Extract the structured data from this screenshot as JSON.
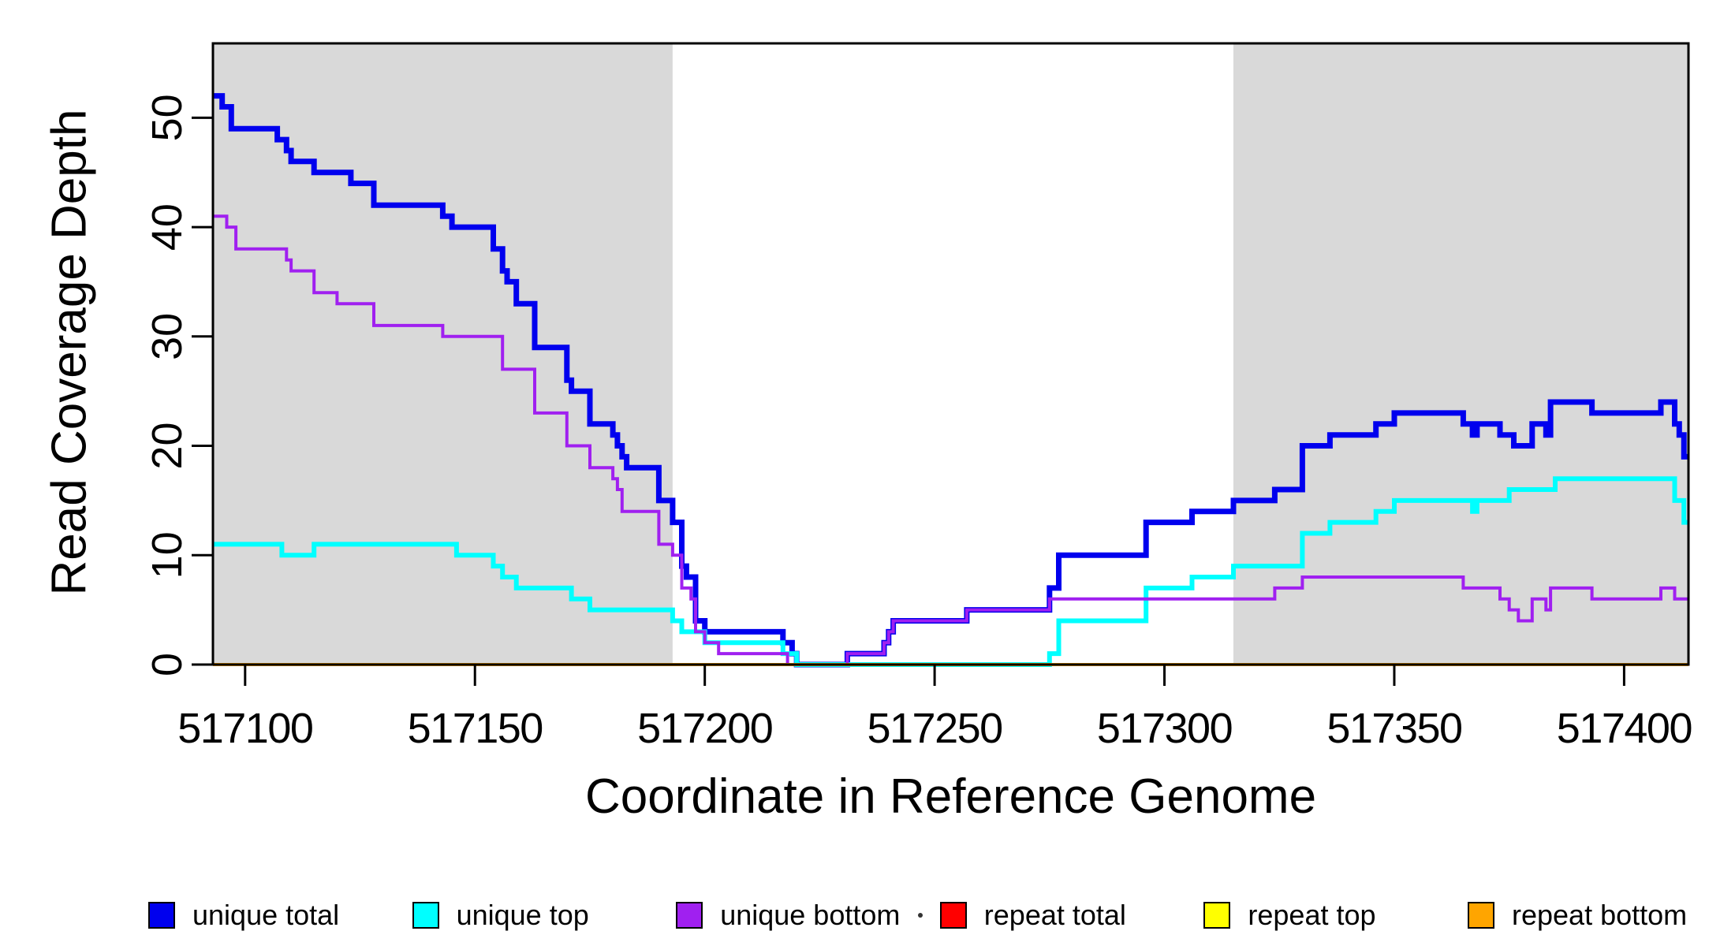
{
  "figure": {
    "x_title": "Coordinate in Reference Genome",
    "y_title": "Read Coverage Depth"
  },
  "legend": {
    "items": [
      {
        "label": "unique total",
        "color": "#0000EE"
      },
      {
        "label": "unique top",
        "color": "#00FFFF"
      },
      {
        "label": "unique bottom",
        "color": "#A020F0"
      },
      {
        "label": "repeat total",
        "color": "#FF0000"
      },
      {
        "label": "repeat top",
        "color": "#FFFF00"
      },
      {
        "label": "repeat bottom",
        "color": "#FFA500"
      }
    ]
  },
  "chart_data": {
    "type": "line",
    "step_style": "after",
    "title": "",
    "xlabel": "Coordinate in Reference Genome",
    "ylabel": "Read Coverage Depth",
    "xlim": [
      517093,
      517414
    ],
    "ylim": [
      0,
      56.8
    ],
    "x_ticks": [
      517100,
      517150,
      517200,
      517250,
      517300,
      517350,
      517400
    ],
    "y_ticks": [
      0,
      10,
      20,
      30,
      40,
      50
    ],
    "grid": false,
    "legend_position": "bottom",
    "shaded_regions": [
      {
        "x0": 517093,
        "x1": 517193,
        "color": "#D9D9D9"
      },
      {
        "x0": 517315,
        "x1": 517414,
        "color": "#D9D9D9"
      }
    ],
    "series": [
      {
        "id": "unique-total",
        "name": "unique total",
        "color": "#0000EE",
        "width": 7,
        "points": [
          [
            517093,
            52
          ],
          [
            517095,
            51
          ],
          [
            517097,
            49
          ],
          [
            517107,
            48
          ],
          [
            517109,
            47
          ],
          [
            517110,
            46
          ],
          [
            517115,
            45
          ],
          [
            517123,
            44
          ],
          [
            517128,
            42
          ],
          [
            517143,
            41
          ],
          [
            517145,
            40
          ],
          [
            517154,
            38
          ],
          [
            517156,
            36
          ],
          [
            517157,
            35
          ],
          [
            517159,
            33
          ],
          [
            517163,
            29
          ],
          [
            517170,
            26
          ],
          [
            517171,
            25
          ],
          [
            517175,
            22
          ],
          [
            517180,
            21
          ],
          [
            517181,
            20
          ],
          [
            517182,
            19
          ],
          [
            517183,
            18
          ],
          [
            517190,
            15
          ],
          [
            517193,
            13
          ],
          [
            517195,
            9
          ],
          [
            517196,
            8
          ],
          [
            517198,
            4
          ],
          [
            517200,
            3
          ],
          [
            517217,
            2
          ],
          [
            517219,
            1
          ],
          [
            517220,
            0
          ],
          [
            517231,
            1
          ],
          [
            517239,
            2
          ],
          [
            517240,
            3
          ],
          [
            517241,
            4
          ],
          [
            517257,
            5
          ],
          [
            517275,
            7
          ],
          [
            517277,
            10
          ],
          [
            517296,
            13
          ],
          [
            517306,
            14
          ],
          [
            517315,
            15
          ],
          [
            517324,
            16
          ],
          [
            517330,
            20
          ],
          [
            517336,
            21
          ],
          [
            517346,
            22
          ],
          [
            517350,
            23
          ],
          [
            517365,
            22
          ],
          [
            517367,
            21
          ],
          [
            517368,
            22
          ],
          [
            517373,
            21
          ],
          [
            517376,
            20
          ],
          [
            517380,
            22
          ],
          [
            517383,
            21
          ],
          [
            517384,
            24
          ],
          [
            517393,
            23
          ],
          [
            517408,
            24
          ],
          [
            517411,
            22
          ],
          [
            517412,
            21
          ],
          [
            517413,
            19
          ]
        ]
      },
      {
        "id": "unique-top",
        "name": "unique top",
        "color": "#00FFFF",
        "width": 6,
        "points": [
          [
            517093,
            11
          ],
          [
            517108,
            10
          ],
          [
            517115,
            11
          ],
          [
            517146,
            10
          ],
          [
            517154,
            9
          ],
          [
            517156,
            8
          ],
          [
            517159,
            7
          ],
          [
            517171,
            6
          ],
          [
            517175,
            5
          ],
          [
            517193,
            4
          ],
          [
            517195,
            3
          ],
          [
            517200,
            2
          ],
          [
            517217,
            1
          ],
          [
            517220,
            0
          ],
          [
            517275,
            1
          ],
          [
            517277,
            4
          ],
          [
            517296,
            7
          ],
          [
            517306,
            8
          ],
          [
            517315,
            9
          ],
          [
            517330,
            12
          ],
          [
            517336,
            13
          ],
          [
            517346,
            14
          ],
          [
            517350,
            15
          ],
          [
            517367,
            14
          ],
          [
            517368,
            15
          ],
          [
            517375,
            16
          ],
          [
            517385,
            17
          ],
          [
            517411,
            15
          ],
          [
            517413,
            13
          ]
        ]
      },
      {
        "id": "unique-bottom",
        "name": "unique bottom",
        "color": "#A020F0",
        "width": 4,
        "points": [
          [
            517093,
            41
          ],
          [
            517096,
            40
          ],
          [
            517098,
            38
          ],
          [
            517109,
            37
          ],
          [
            517110,
            36
          ],
          [
            517115,
            34
          ],
          [
            517120,
            33
          ],
          [
            517128,
            31
          ],
          [
            517143,
            30
          ],
          [
            517156,
            27
          ],
          [
            517163,
            23
          ],
          [
            517170,
            20
          ],
          [
            517175,
            18
          ],
          [
            517180,
            17
          ],
          [
            517181,
            16
          ],
          [
            517182,
            14
          ],
          [
            517190,
            11
          ],
          [
            517193,
            10
          ],
          [
            517195,
            7
          ],
          [
            517197,
            6
          ],
          [
            517198,
            3
          ],
          [
            517200,
            2
          ],
          [
            517203,
            1
          ],
          [
            517218,
            0
          ],
          [
            517231,
            1
          ],
          [
            517239,
            2
          ],
          [
            517240,
            3
          ],
          [
            517241,
            4
          ],
          [
            517257,
            5
          ],
          [
            517275,
            6
          ],
          [
            517324,
            7
          ],
          [
            517330,
            8
          ],
          [
            517365,
            7
          ],
          [
            517373,
            6
          ],
          [
            517375,
            5
          ],
          [
            517377,
            4
          ],
          [
            517380,
            6
          ],
          [
            517383,
            5
          ],
          [
            517384,
            7
          ],
          [
            517393,
            6
          ],
          [
            517408,
            7
          ],
          [
            517411,
            6
          ]
        ]
      },
      {
        "id": "repeat-total",
        "name": "repeat total",
        "color": "#FF0000",
        "width": 3,
        "points": [
          [
            517093,
            0
          ]
        ]
      },
      {
        "id": "repeat-top",
        "name": "repeat top",
        "color": "#FFFF00",
        "width": 3,
        "points": [
          [
            517093,
            0
          ]
        ]
      },
      {
        "id": "repeat-bottom",
        "name": "repeat bottom",
        "color": "#FFA500",
        "width": 4,
        "points": [
          [
            517093,
            0
          ]
        ]
      }
    ]
  }
}
